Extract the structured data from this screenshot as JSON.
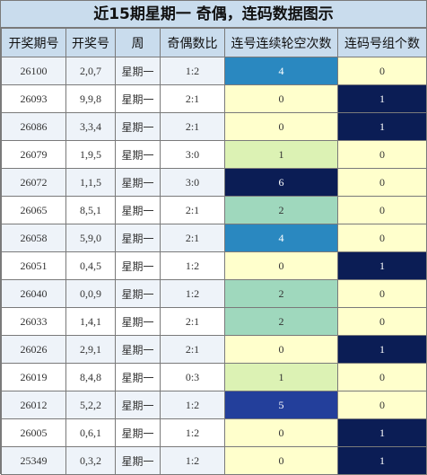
{
  "title": "近15期星期一 奇偶，连码数据图示",
  "columns": [
    "开奖期号",
    "开奖号",
    "周",
    "奇偶数比",
    "连号连续轮空次数",
    "连码号组个数"
  ],
  "colors": {
    "header_bg": "#c9dced",
    "row_odd_bg": "#eef3f9",
    "row_even_bg": "#ffffff",
    "zero_bg": "#ffffcc",
    "level_1": "#dcf2b4",
    "level_2": "#9fd8bd",
    "level_4": "#2a88c0",
    "level_5": "#233f9b",
    "level_6": "#0b1d55",
    "count_1": "#0b1d55"
  },
  "rows": [
    {
      "issue": "26100",
      "numbers": "2,0,7",
      "weekday": "星期一",
      "odd_even": "1:2",
      "gap": "4",
      "groups": "0"
    },
    {
      "issue": "26093",
      "numbers": "9,9,8",
      "weekday": "星期一",
      "odd_even": "2:1",
      "gap": "0",
      "groups": "1"
    },
    {
      "issue": "26086",
      "numbers": "3,3,4",
      "weekday": "星期一",
      "odd_even": "2:1",
      "gap": "0",
      "groups": "1"
    },
    {
      "issue": "26079",
      "numbers": "1,9,5",
      "weekday": "星期一",
      "odd_even": "3:0",
      "gap": "1",
      "groups": "0"
    },
    {
      "issue": "26072",
      "numbers": "1,1,5",
      "weekday": "星期一",
      "odd_even": "3:0",
      "gap": "6",
      "groups": "0"
    },
    {
      "issue": "26065",
      "numbers": "8,5,1",
      "weekday": "星期一",
      "odd_even": "2:1",
      "gap": "2",
      "groups": "0"
    },
    {
      "issue": "26058",
      "numbers": "5,9,0",
      "weekday": "星期一",
      "odd_even": "2:1",
      "gap": "4",
      "groups": "0"
    },
    {
      "issue": "26051",
      "numbers": "0,4,5",
      "weekday": "星期一",
      "odd_even": "1:2",
      "gap": "0",
      "groups": "1"
    },
    {
      "issue": "26040",
      "numbers": "0,0,9",
      "weekday": "星期一",
      "odd_even": "1:2",
      "gap": "2",
      "groups": "0"
    },
    {
      "issue": "26033",
      "numbers": "1,4,1",
      "weekday": "星期一",
      "odd_even": "2:1",
      "gap": "2",
      "groups": "0"
    },
    {
      "issue": "26026",
      "numbers": "2,9,1",
      "weekday": "星期一",
      "odd_even": "2:1",
      "gap": "0",
      "groups": "1"
    },
    {
      "issue": "26019",
      "numbers": "8,4,8",
      "weekday": "星期一",
      "odd_even": "0:3",
      "gap": "1",
      "groups": "0"
    },
    {
      "issue": "26012",
      "numbers": "5,2,2",
      "weekday": "星期一",
      "odd_even": "1:2",
      "gap": "5",
      "groups": "0"
    },
    {
      "issue": "26005",
      "numbers": "0,6,1",
      "weekday": "星期一",
      "odd_even": "1:2",
      "gap": "0",
      "groups": "1"
    },
    {
      "issue": "25349",
      "numbers": "0,3,2",
      "weekday": "星期一",
      "odd_even": "1:2",
      "gap": "0",
      "groups": "1"
    }
  ]
}
